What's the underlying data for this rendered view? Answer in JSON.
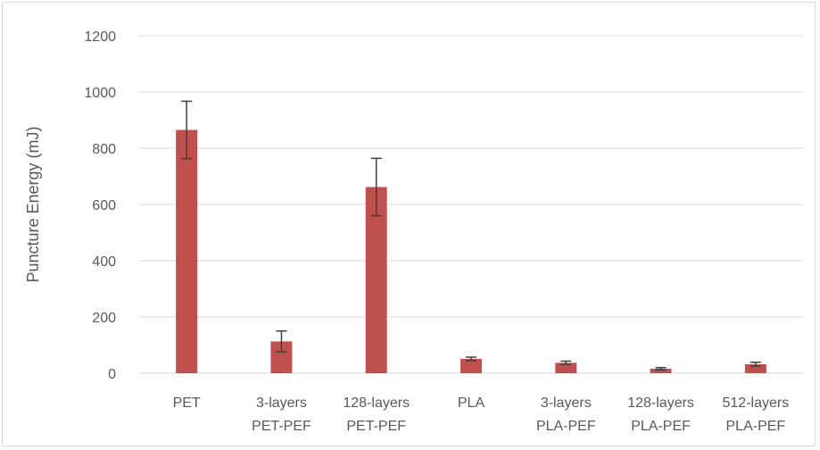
{
  "chart_data": {
    "type": "bar",
    "title": "",
    "xlabel": "",
    "ylabel": "Puncture Energy (mJ)",
    "ylim": [
      0,
      1200
    ],
    "yticks": [
      0,
      200,
      400,
      600,
      800,
      1000,
      1200
    ],
    "grid": true,
    "legend": "none",
    "categories": [
      [
        "PET"
      ],
      [
        "3-layers",
        "PET-PEF"
      ],
      [
        "128-layers",
        "PET-PEF"
      ],
      [
        "PLA"
      ],
      [
        "3-layers",
        "PLA-PEF"
      ],
      [
        "128-layers",
        "PLA-PEF"
      ],
      [
        "512-layers",
        "PLA-PEF"
      ]
    ],
    "series": [
      {
        "values": [
          865,
          113,
          662,
          51,
          37,
          16,
          32
        ],
        "error": [
          102,
          37,
          102,
          6,
          6,
          4,
          7
        ]
      }
    ],
    "colors": {
      "bar": "#c0504d",
      "error_bar": "#404040",
      "grid": "#d9d9d9",
      "text": "#595959"
    }
  }
}
